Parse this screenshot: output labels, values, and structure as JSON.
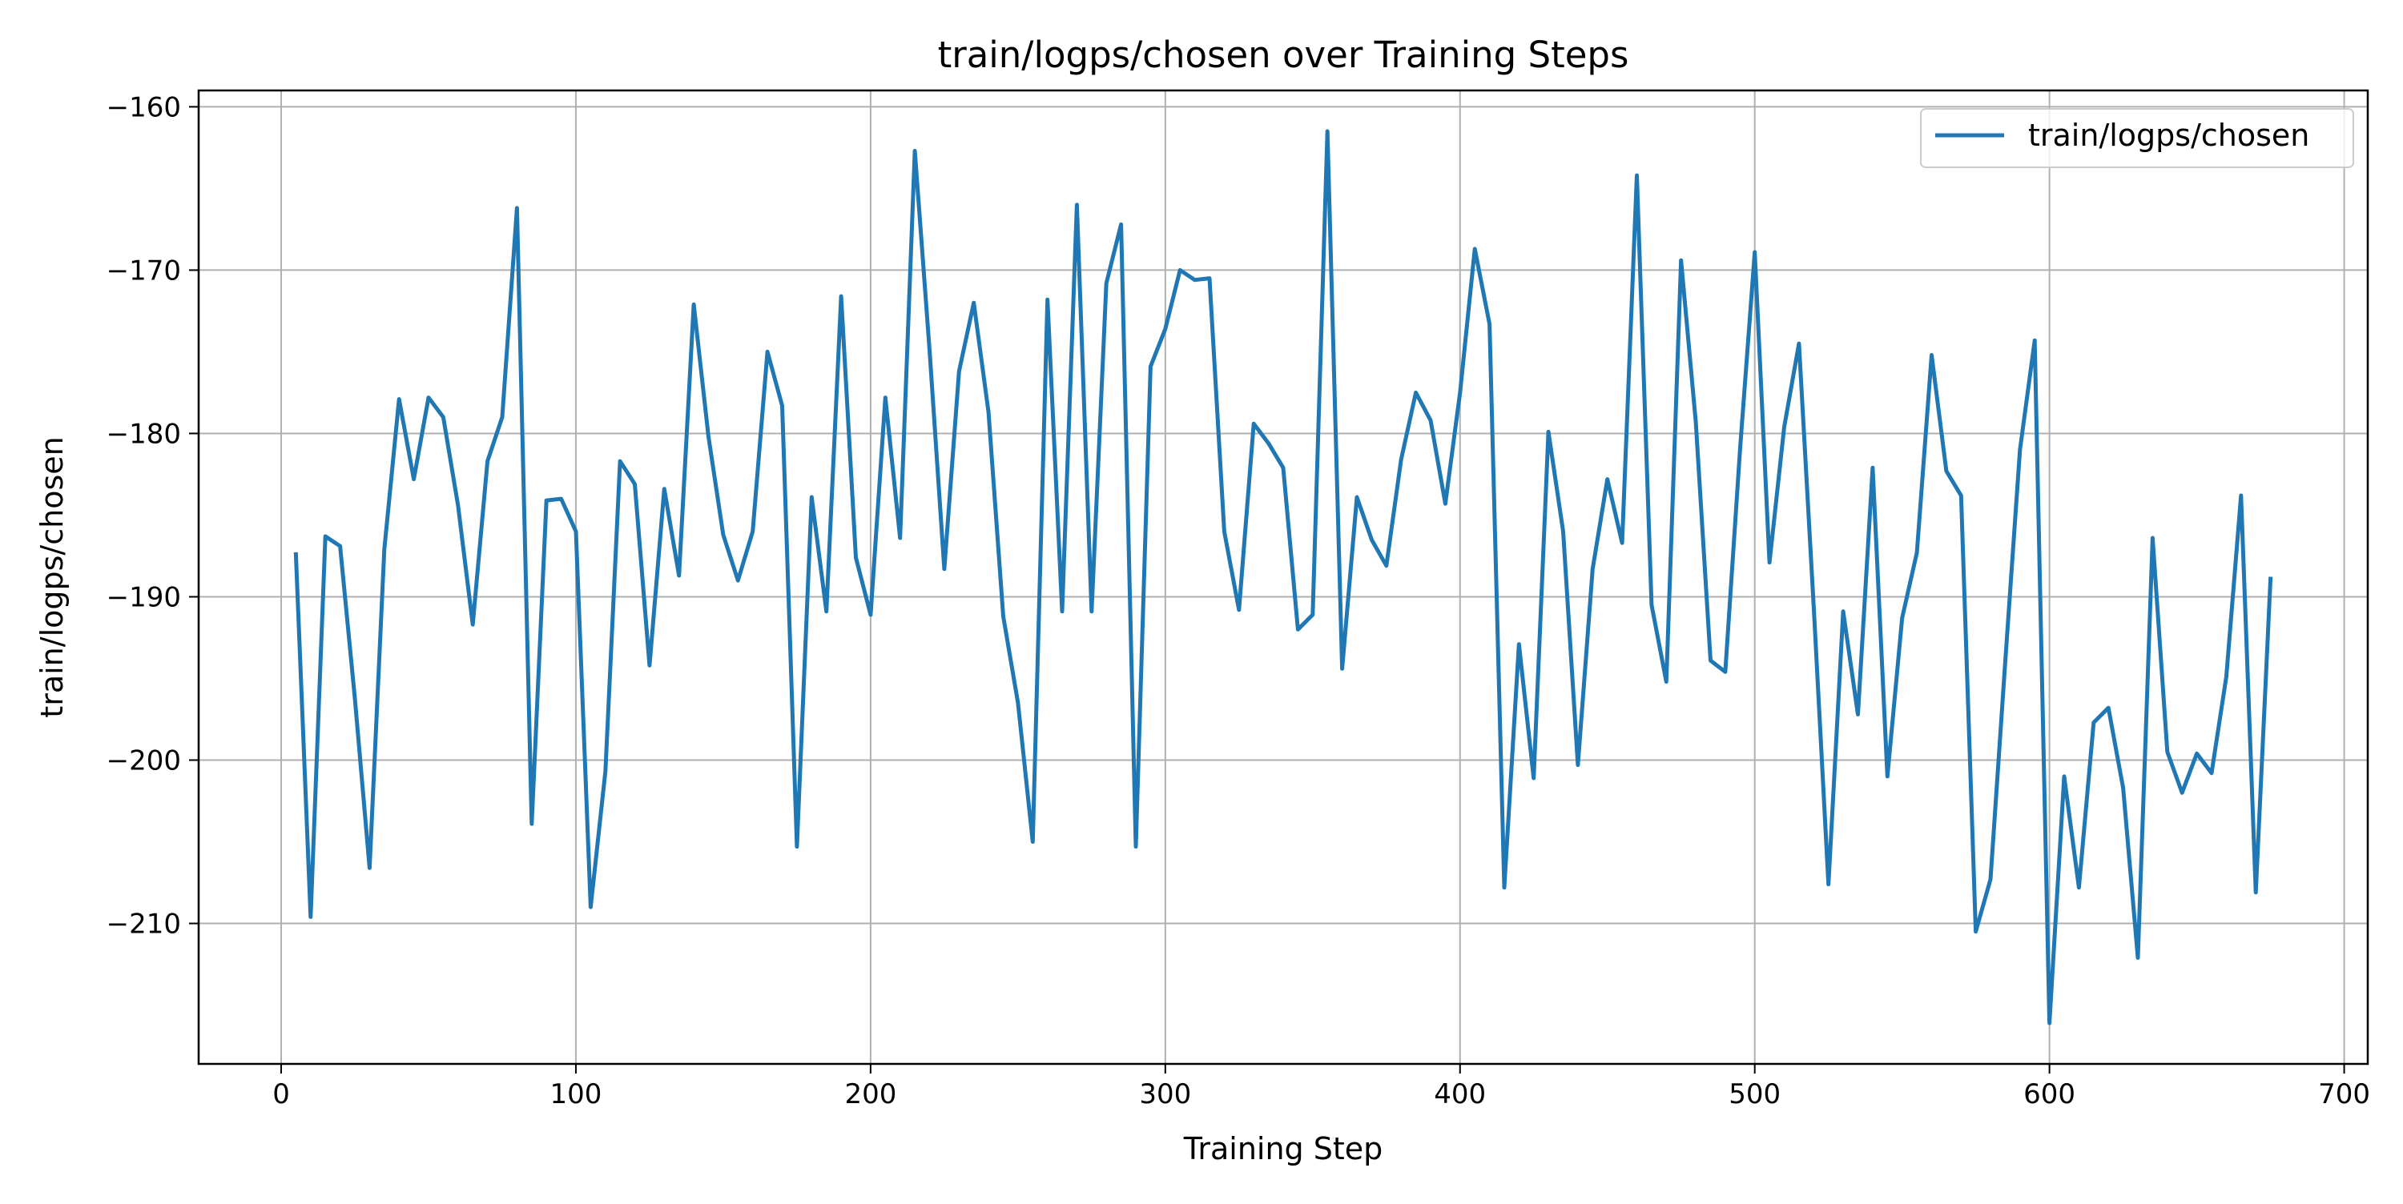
{
  "chart_data": {
    "type": "line",
    "title": "train/logps/chosen over Training Steps",
    "xlabel": "Training Step",
    "ylabel": "train/logps/chosen",
    "xlim": [
      -28,
      708
    ],
    "ylim": [
      -218.6,
      -159
    ],
    "xticks": [
      0,
      100,
      200,
      300,
      400,
      500,
      600,
      700
    ],
    "xtick_labels": [
      "0",
      "100",
      "200",
      "300",
      "400",
      "500",
      "600",
      "700"
    ],
    "yticks": [
      -160,
      -170,
      -180,
      -190,
      -200,
      -210
    ],
    "ytick_labels": [
      "−160",
      "−170",
      "−180",
      "−190",
      "−200",
      "−210"
    ],
    "grid": true,
    "legend_position": "top-right",
    "line_color": "#1f77b4",
    "series": [
      {
        "name": "train/logps/chosen",
        "x": [
          5,
          10,
          15,
          20,
          25,
          30,
          35,
          40,
          45,
          50,
          55,
          60,
          65,
          70,
          75,
          80,
          85,
          90,
          95,
          100,
          105,
          110,
          115,
          120,
          125,
          130,
          135,
          140,
          145,
          150,
          155,
          160,
          165,
          170,
          175,
          180,
          185,
          190,
          195,
          200,
          205,
          210,
          215,
          220,
          225,
          230,
          235,
          240,
          245,
          250,
          255,
          260,
          265,
          270,
          275,
          280,
          285,
          290,
          295,
          300,
          305,
          310,
          315,
          320,
          325,
          330,
          335,
          340,
          345,
          350,
          355,
          360,
          365,
          370,
          375,
          380,
          385,
          390,
          395,
          400,
          405,
          410,
          415,
          420,
          425,
          430,
          435,
          440,
          445,
          450,
          455,
          460,
          465,
          470,
          475,
          480,
          485,
          490,
          495,
          500,
          505,
          510,
          515,
          520,
          525,
          530,
          535,
          540,
          545,
          550,
          555,
          560,
          565,
          570,
          575,
          580,
          585,
          590,
          595,
          600,
          605,
          610,
          615,
          620,
          625,
          630,
          635,
          640,
          645,
          650,
          655,
          660,
          665,
          670,
          675
        ],
        "y": [
          -187.4,
          -209.6,
          -186.3,
          -186.9,
          -196.2,
          -206.6,
          -187.1,
          -177.9,
          -182.8,
          -177.8,
          -179,
          -184.4,
          -191.7,
          -181.7,
          -179,
          -166.2,
          -203.9,
          -184.1,
          -184,
          -186,
          -209,
          -200.7,
          -181.7,
          -183.1,
          -194.2,
          -183.4,
          -188.7,
          -172.1,
          -180.2,
          -186.2,
          -189,
          -186,
          -175,
          -178.3,
          -205.3,
          -183.9,
          -190.9,
          -171.6,
          -187.6,
          -191.1,
          -177.8,
          -186.4,
          -162.7,
          -174.9,
          -188.3,
          -176.2,
          -172,
          -178.7,
          -191.2,
          -196.5,
          -205,
          -171.8,
          -190.9,
          -166,
          -190.9,
          -170.8,
          -167.2,
          -205.3,
          -175.9,
          -173.6,
          -170,
          -170.6,
          -170.5,
          -186,
          -190.8,
          -179.4,
          -180.6,
          -182.1,
          -192,
          -191.1,
          -161.5,
          -194.4,
          -183.9,
          -186.5,
          -188.1,
          -181.6,
          -177.5,
          -179.2,
          -184.3,
          -177.5,
          -168.7,
          -173.3,
          -207.8,
          -192.9,
          -201.1,
          -179.9,
          -186,
          -200.3,
          -188.3,
          -182.8,
          -186.7,
          -164.2,
          -190.5,
          -195.2,
          -169.4,
          -179.3,
          -193.9,
          -194.6,
          -181,
          -168.9,
          -187.9,
          -179.6,
          -174.5,
          -190.6,
          -207.6,
          -190.9,
          -197.2,
          -182.1,
          -201,
          -191.3,
          -187.3,
          -175.2,
          -182.3,
          -183.8,
          -210.5,
          -207.3,
          -194,
          -181,
          -174.3,
          -216.1,
          -201,
          -207.8,
          -197.7,
          -196.8,
          -201.7,
          -212.1,
          -186.4,
          -199.5,
          -202,
          -199.6,
          -200.8,
          -194.9,
          -183.8,
          -208.1,
          -188.9
        ]
      }
    ]
  }
}
